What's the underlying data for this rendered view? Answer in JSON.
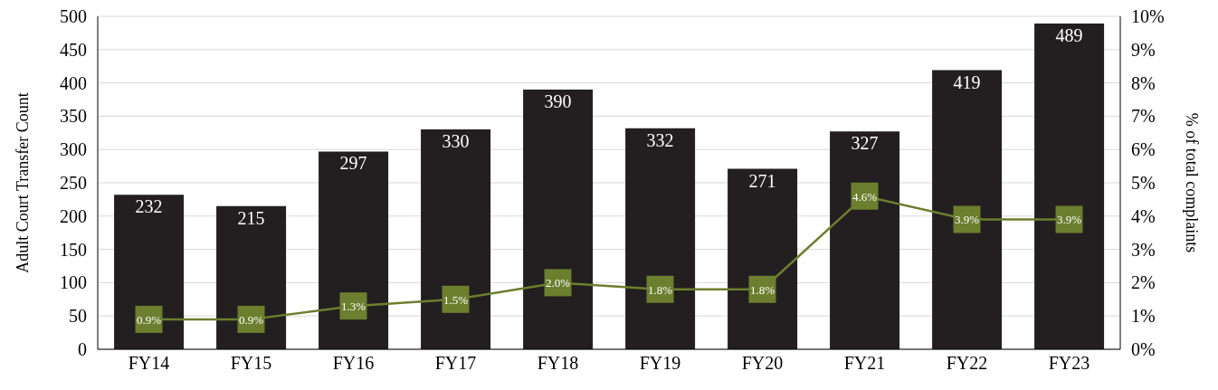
{
  "chart_data": {
    "type": "bar",
    "ylabel": "Adult Court Transfer Count",
    "y2label": "% of total complaints",
    "categories": [
      "FY14",
      "FY15",
      "FY16",
      "FY17",
      "FY18",
      "FY19",
      "FY20",
      "FY21",
      "FY22",
      "FY23"
    ],
    "series": [
      {
        "color": "#231f20",
        "values": [
          232,
          215,
          297,
          330,
          390,
          332,
          271,
          327,
          419,
          489
        ],
        "value_labels": [
          "232",
          "215",
          "297",
          "330",
          "390",
          "332",
          "271",
          "327",
          "419",
          "489"
        ]
      },
      {
        "type": "line",
        "axis": "y2",
        "color": "#6b7f2e",
        "marker": "square",
        "line_style": "solid",
        "values": [
          0.9,
          0.9,
          1.3,
          1.5,
          2.0,
          1.8,
          1.8,
          4.6,
          3.9,
          3.9
        ],
        "value_labels": [
          "0.9%",
          "0.9%",
          "1.3%",
          "1.5%",
          "2.0%",
          "1.8%",
          "1.8%",
          "4.6%",
          "3.9%",
          "3.9%"
        ]
      }
    ],
    "ylim": [
      0,
      500
    ],
    "yticks": [
      0,
      50,
      100,
      150,
      200,
      250,
      300,
      350,
      400,
      450,
      500
    ],
    "y2lim": [
      0,
      10
    ],
    "y2ticks": [
      {
        "value": 0,
        "label": "0%"
      },
      {
        "value": 1,
        "label": "1%"
      },
      {
        "value": 2,
        "label": "2%"
      },
      {
        "value": 3,
        "label": "3%"
      },
      {
        "value": 4,
        "label": "4%"
      },
      {
        "value": 5,
        "label": "5%"
      },
      {
        "value": 6,
        "label": "6%"
      },
      {
        "value": 7,
        "label": "7%"
      },
      {
        "value": 8,
        "label": "8%"
      },
      {
        "value": 9,
        "label": "9%"
      },
      {
        "value": 10,
        "label": "10%"
      }
    ],
    "grid": "y",
    "legend": false
  }
}
